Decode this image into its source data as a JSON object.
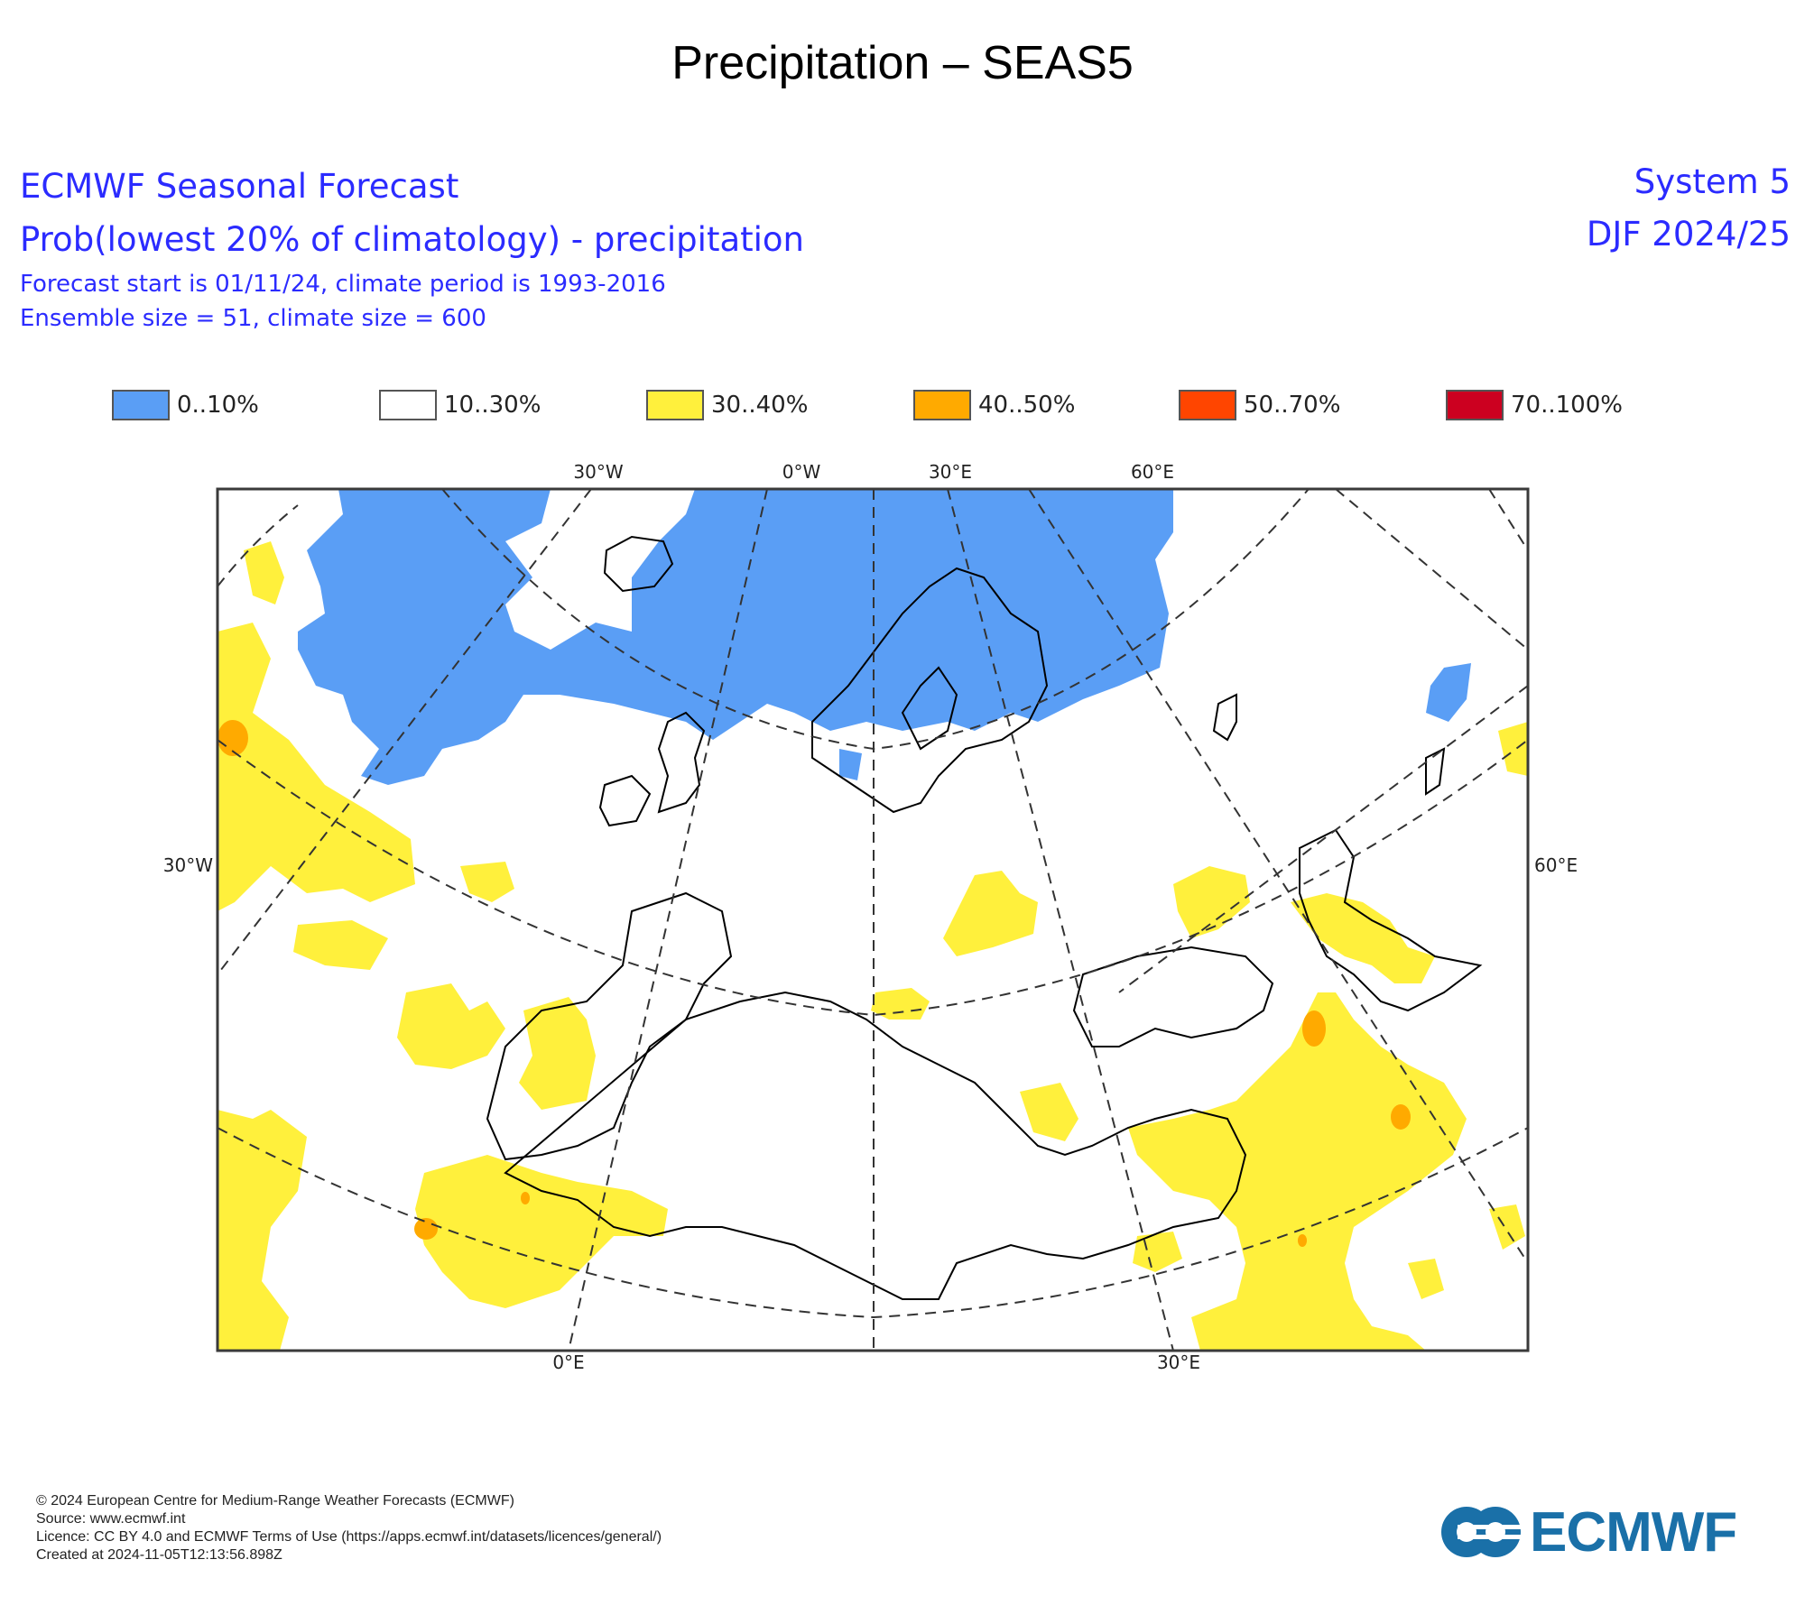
{
  "page": {
    "title": "Precipitation – SEAS5"
  },
  "header": {
    "org": "ECMWF Seasonal Forecast",
    "description": "Prob(lowest 20% of climatology) - precipitation",
    "forecast_start": "Forecast start is 01/11/24, climate period is 1993-2016",
    "ensemble": "Ensemble size = 51, climate size = 600",
    "system": "System 5",
    "season": "DJF 2024/25"
  },
  "legend": [
    {
      "label": "0..10%",
      "color": "#5a9ef5"
    },
    {
      "label": "10..30%",
      "color": "#ffffff"
    },
    {
      "label": "30..40%",
      "color": "#fff03c"
    },
    {
      "label": "40..50%",
      "color": "#ffaa00"
    },
    {
      "label": "50..70%",
      "color": "#ff4500"
    },
    {
      "label": "70..100%",
      "color": "#cc0020"
    }
  ],
  "map": {
    "top_labels": [
      "30°W",
      "0°W",
      "30°E",
      "60°E"
    ],
    "bottom_labels": [
      "0°E",
      "30°E"
    ],
    "left_label": "30°W",
    "right_label": "60°E"
  },
  "footer": {
    "copyright": "© 2024 European Centre for Medium-Range Weather Forecasts (ECMWF)",
    "source": "Source: www.ecmwf.int",
    "licence": "Licence: CC BY 4.0 and ECMWF Terms of Use (https://apps.ecmwf.int/datasets/licences/general/)",
    "created": "Created at 2024-11-05T12:13:56.898Z"
  },
  "logo": {
    "text": "ECMWF",
    "color": "#1a70a8"
  }
}
